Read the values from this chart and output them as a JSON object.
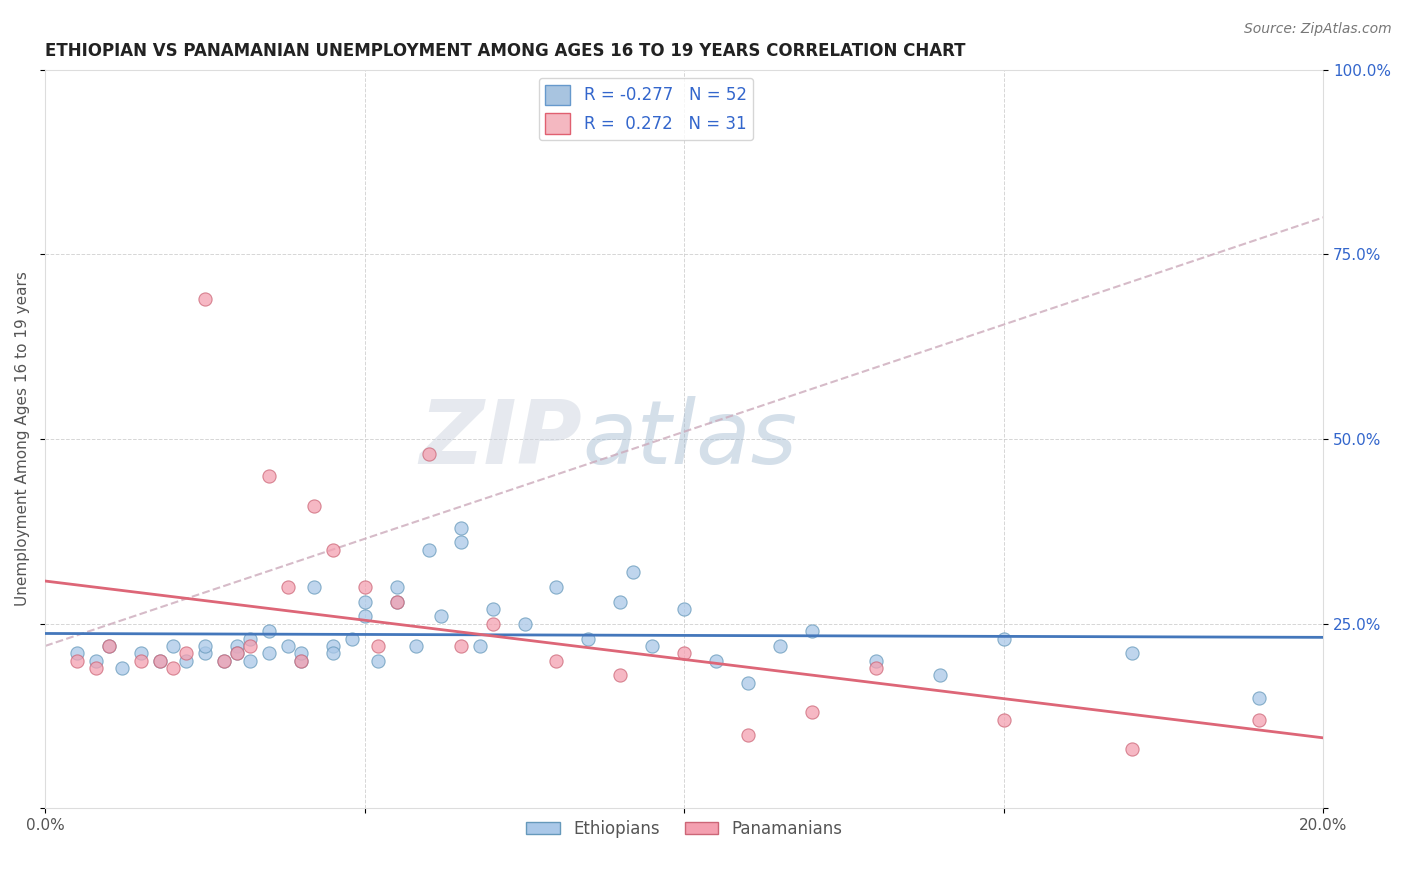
{
  "title": "ETHIOPIAN VS PANAMANIAN UNEMPLOYMENT AMONG AGES 16 TO 19 YEARS CORRELATION CHART",
  "source_text": "Source: ZipAtlas.com",
  "ylabel": "Unemployment Among Ages 16 to 19 years",
  "xlim": [
    0.0,
    0.2
  ],
  "ylim": [
    0.0,
    1.0
  ],
  "xticks": [
    0.0,
    0.05,
    0.1,
    0.15,
    0.2
  ],
  "xticklabels": [
    "0.0%",
    "",
    "",
    "",
    "20.0%"
  ],
  "yticks": [
    0.0,
    0.25,
    0.5,
    0.75,
    1.0
  ],
  "right_yticklabels": [
    "",
    "25.0%",
    "50.0%",
    "75.0%",
    "100.0%"
  ],
  "watermark_zip": "ZIP",
  "watermark_atlas": "atlas",
  "legend_items": [
    {
      "label": "R = -0.277   N = 52",
      "facecolor": "#a8c4e0",
      "edgecolor": "#6699cc"
    },
    {
      "label": "R =  0.272   N = 31",
      "facecolor": "#f4b8c1",
      "edgecolor": "#e06070"
    }
  ],
  "ethiopian_dot_face": "#aac8e8",
  "ethiopian_dot_edge": "#6699bb",
  "panamanian_dot_face": "#f4a0b0",
  "panamanian_dot_edge": "#cc6677",
  "ethiopian_line_color": "#4477bb",
  "panamanian_line_color": "#dd6677",
  "dashed_line_color": "#ccaabb",
  "background_color": "#ffffff",
  "grid_color": "#cccccc",
  "ethiopians_x": [
    0.005,
    0.008,
    0.01,
    0.012,
    0.015,
    0.018,
    0.02,
    0.022,
    0.025,
    0.025,
    0.028,
    0.03,
    0.03,
    0.032,
    0.032,
    0.035,
    0.035,
    0.038,
    0.04,
    0.04,
    0.042,
    0.045,
    0.045,
    0.048,
    0.05,
    0.05,
    0.052,
    0.055,
    0.055,
    0.058,
    0.06,
    0.062,
    0.065,
    0.065,
    0.068,
    0.07,
    0.075,
    0.08,
    0.085,
    0.09,
    0.092,
    0.095,
    0.1,
    0.105,
    0.11,
    0.115,
    0.12,
    0.13,
    0.14,
    0.15,
    0.17,
    0.19
  ],
  "ethiopians_y": [
    0.21,
    0.2,
    0.22,
    0.19,
    0.21,
    0.2,
    0.22,
    0.2,
    0.21,
    0.22,
    0.2,
    0.22,
    0.21,
    0.2,
    0.23,
    0.24,
    0.21,
    0.22,
    0.2,
    0.21,
    0.3,
    0.22,
    0.21,
    0.23,
    0.28,
    0.26,
    0.2,
    0.3,
    0.28,
    0.22,
    0.35,
    0.26,
    0.38,
    0.36,
    0.22,
    0.27,
    0.25,
    0.3,
    0.23,
    0.28,
    0.32,
    0.22,
    0.27,
    0.2,
    0.17,
    0.22,
    0.24,
    0.2,
    0.18,
    0.23,
    0.21,
    0.15
  ],
  "panamanians_x": [
    0.005,
    0.008,
    0.01,
    0.015,
    0.018,
    0.02,
    0.022,
    0.025,
    0.028,
    0.03,
    0.032,
    0.035,
    0.038,
    0.04,
    0.042,
    0.045,
    0.05,
    0.052,
    0.055,
    0.06,
    0.065,
    0.07,
    0.08,
    0.09,
    0.1,
    0.11,
    0.12,
    0.13,
    0.15,
    0.17,
    0.19
  ],
  "panamanians_y": [
    0.2,
    0.19,
    0.22,
    0.2,
    0.2,
    0.19,
    0.21,
    0.69,
    0.2,
    0.21,
    0.22,
    0.45,
    0.3,
    0.2,
    0.41,
    0.35,
    0.3,
    0.22,
    0.28,
    0.48,
    0.22,
    0.25,
    0.2,
    0.18,
    0.21,
    0.1,
    0.13,
    0.19,
    0.12,
    0.08,
    0.12
  ]
}
